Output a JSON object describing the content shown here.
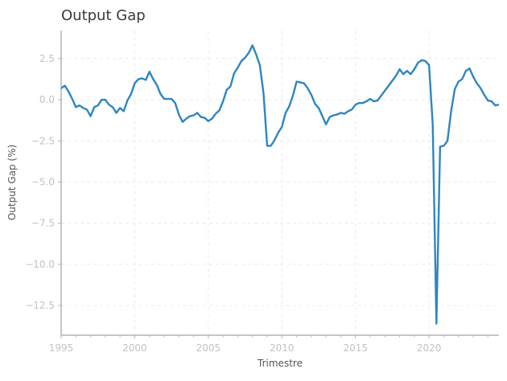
{
  "chart_data": {
    "type": "line",
    "title": "Output Gap",
    "xlabel": "Trimestre",
    "ylabel": "Output Gap (%)",
    "xlim": [
      1995,
      2024.75
    ],
    "ylim": [
      -14.3,
      4.2
    ],
    "x_ticks": [
      1995,
      2000,
      2005,
      2010,
      2015,
      2020
    ],
    "y_ticks": [
      2.5,
      0.0,
      -2.5,
      -5.0,
      -7.5,
      -10.0,
      -12.5
    ],
    "y_tick_labels": [
      "2.5",
      "0.0",
      "−2.5",
      "−5.0",
      "−7.5",
      "−10.0",
      "−12.5"
    ],
    "grid": true,
    "legend": "none",
    "series": [
      {
        "color": "#2e86c1",
        "points": [
          [
            1995.0,
            0.7
          ],
          [
            1995.25,
            0.85
          ],
          [
            1995.5,
            0.5
          ],
          [
            1995.75,
            0.05
          ],
          [
            1996.0,
            -0.45
          ],
          [
            1996.25,
            -0.35
          ],
          [
            1996.5,
            -0.5
          ],
          [
            1996.75,
            -0.6
          ],
          [
            1997.0,
            -1.0
          ],
          [
            1997.25,
            -0.45
          ],
          [
            1997.5,
            -0.35
          ],
          [
            1997.75,
            0.0
          ],
          [
            1998.0,
            0.0
          ],
          [
            1998.25,
            -0.3
          ],
          [
            1998.5,
            -0.45
          ],
          [
            1998.75,
            -0.8
          ],
          [
            1999.0,
            -0.5
          ],
          [
            1999.25,
            -0.7
          ],
          [
            1999.5,
            -0.05
          ],
          [
            1999.75,
            0.35
          ],
          [
            2000.0,
            1.0
          ],
          [
            2000.25,
            1.25
          ],
          [
            2000.5,
            1.3
          ],
          [
            2000.75,
            1.2
          ],
          [
            2001.0,
            1.7
          ],
          [
            2001.25,
            1.25
          ],
          [
            2001.5,
            0.9
          ],
          [
            2001.75,
            0.35
          ],
          [
            2002.0,
            0.05
          ],
          [
            2002.25,
            0.05
          ],
          [
            2002.5,
            0.05
          ],
          [
            2002.75,
            -0.2
          ],
          [
            2003.0,
            -0.9
          ],
          [
            2003.25,
            -1.35
          ],
          [
            2003.5,
            -1.15
          ],
          [
            2003.75,
            -1.0
          ],
          [
            2004.0,
            -0.95
          ],
          [
            2004.25,
            -0.8
          ],
          [
            2004.5,
            -1.05
          ],
          [
            2004.75,
            -1.1
          ],
          [
            2005.0,
            -1.3
          ],
          [
            2005.25,
            -1.15
          ],
          [
            2005.5,
            -0.85
          ],
          [
            2005.75,
            -0.65
          ],
          [
            2006.0,
            -0.1
          ],
          [
            2006.25,
            0.6
          ],
          [
            2006.5,
            0.8
          ],
          [
            2006.75,
            1.6
          ],
          [
            2007.0,
            1.95
          ],
          [
            2007.25,
            2.35
          ],
          [
            2007.5,
            2.55
          ],
          [
            2007.75,
            2.85
          ],
          [
            2008.0,
            3.3
          ],
          [
            2008.25,
            2.75
          ],
          [
            2008.5,
            2.1
          ],
          [
            2008.75,
            0.4
          ],
          [
            2009.0,
            -2.8
          ],
          [
            2009.25,
            -2.8
          ],
          [
            2009.5,
            -2.45
          ],
          [
            2009.75,
            -2.0
          ],
          [
            2010.0,
            -1.65
          ],
          [
            2010.25,
            -0.8
          ],
          [
            2010.5,
            -0.4
          ],
          [
            2010.75,
            0.25
          ],
          [
            2011.0,
            1.1
          ],
          [
            2011.25,
            1.05
          ],
          [
            2011.5,
            1.0
          ],
          [
            2011.75,
            0.7
          ],
          [
            2012.0,
            0.3
          ],
          [
            2012.25,
            -0.25
          ],
          [
            2012.5,
            -0.5
          ],
          [
            2012.75,
            -1.0
          ],
          [
            2013.0,
            -1.5
          ],
          [
            2013.25,
            -1.05
          ],
          [
            2013.5,
            -0.95
          ],
          [
            2013.75,
            -0.9
          ],
          [
            2014.0,
            -0.8
          ],
          [
            2014.25,
            -0.85
          ],
          [
            2014.5,
            -0.7
          ],
          [
            2014.75,
            -0.6
          ],
          [
            2015.0,
            -0.3
          ],
          [
            2015.25,
            -0.2
          ],
          [
            2015.5,
            -0.2
          ],
          [
            2015.75,
            -0.1
          ],
          [
            2016.0,
            0.05
          ],
          [
            2016.25,
            -0.1
          ],
          [
            2016.5,
            -0.05
          ],
          [
            2016.75,
            0.25
          ],
          [
            2017.0,
            0.55
          ],
          [
            2017.25,
            0.85
          ],
          [
            2017.5,
            1.15
          ],
          [
            2017.75,
            1.45
          ],
          [
            2018.0,
            1.85
          ],
          [
            2018.25,
            1.55
          ],
          [
            2018.5,
            1.75
          ],
          [
            2018.75,
            1.55
          ],
          [
            2019.0,
            1.85
          ],
          [
            2019.25,
            2.25
          ],
          [
            2019.5,
            2.4
          ],
          [
            2019.75,
            2.35
          ],
          [
            2020.0,
            2.1
          ],
          [
            2020.25,
            -1.5
          ],
          [
            2020.5,
            -13.6
          ],
          [
            2020.75,
            -2.85
          ],
          [
            2021.0,
            -2.8
          ],
          [
            2021.25,
            -2.5
          ],
          [
            2021.5,
            -0.7
          ],
          [
            2021.75,
            0.65
          ],
          [
            2022.0,
            1.1
          ],
          [
            2022.25,
            1.25
          ],
          [
            2022.5,
            1.75
          ],
          [
            2022.75,
            1.9
          ],
          [
            2023.0,
            1.4
          ],
          [
            2023.25,
            1.0
          ],
          [
            2023.5,
            0.7
          ],
          [
            2023.75,
            0.3
          ],
          [
            2024.0,
            -0.05
          ],
          [
            2024.25,
            -0.1
          ],
          [
            2024.5,
            -0.35
          ],
          [
            2024.75,
            -0.3
          ],
          [
            2025.0,
            -0.45
          ]
        ]
      }
    ]
  }
}
